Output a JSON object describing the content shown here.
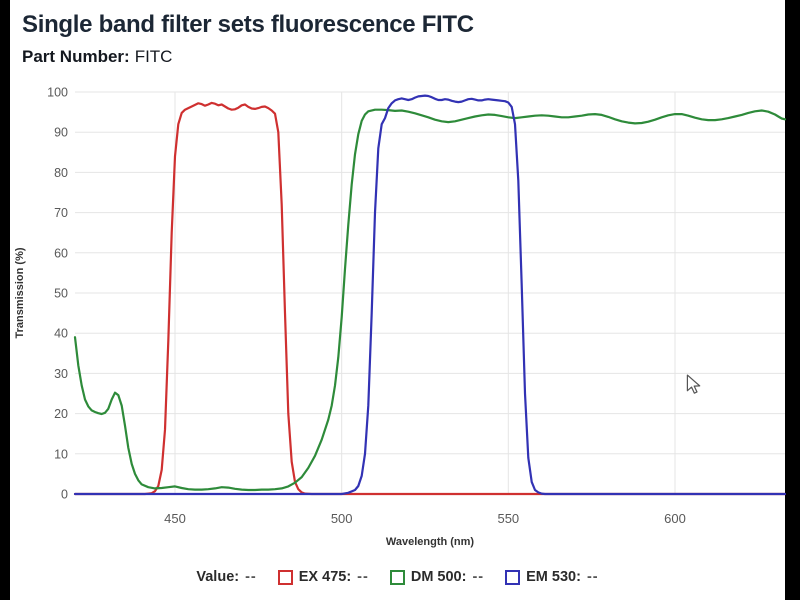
{
  "header": {
    "title": "Single band filter sets fluorescence FITC",
    "part_number_label": "Part Number:",
    "part_number_value": "FITC"
  },
  "chart_data": {
    "type": "line",
    "title": "",
    "xlabel": "Wavelength (nm)",
    "ylabel": "Transmission (%)",
    "xlim": [
      420,
      633
    ],
    "ylim": [
      0,
      100
    ],
    "x_ticks": [
      450,
      500,
      550,
      600
    ],
    "y_ticks": [
      0,
      10,
      20,
      30,
      40,
      50,
      60,
      70,
      80,
      90,
      100
    ],
    "grid": true,
    "grid_color": "#e5e5e5",
    "tick_label_color": "#595959",
    "legend_position": "bottom",
    "series": [
      {
        "name": "EX 475",
        "color": "#cf3030",
        "points": [
          [
            420,
            0
          ],
          [
            441,
            0
          ],
          [
            443,
            0.2
          ],
          [
            444,
            0.7
          ],
          [
            445,
            2
          ],
          [
            446,
            6
          ],
          [
            447,
            16
          ],
          [
            448,
            38
          ],
          [
            449,
            65
          ],
          [
            450,
            84
          ],
          [
            451,
            92
          ],
          [
            452,
            94.8
          ],
          [
            453,
            95.6
          ],
          [
            454,
            96
          ],
          [
            455,
            96.4
          ],
          [
            456,
            96.8
          ],
          [
            457,
            97.2
          ],
          [
            458,
            97
          ],
          [
            459,
            96.6
          ],
          [
            460,
            96.9
          ],
          [
            461,
            97.3
          ],
          [
            462,
            97.1
          ],
          [
            463,
            96.7
          ],
          [
            464,
            96.9
          ],
          [
            465,
            96.4
          ],
          [
            466,
            95.9
          ],
          [
            467,
            95.6
          ],
          [
            468,
            95.7
          ],
          [
            469,
            96.1
          ],
          [
            470,
            96.7
          ],
          [
            471,
            96.9
          ],
          [
            472,
            96.3
          ],
          [
            473,
            95.9
          ],
          [
            474,
            95.8
          ],
          [
            475,
            96
          ],
          [
            476,
            96.3
          ],
          [
            477,
            96.4
          ],
          [
            478,
            96
          ],
          [
            479,
            95.4
          ],
          [
            480,
            94.6
          ],
          [
            481,
            90
          ],
          [
            482,
            72
          ],
          [
            483,
            45
          ],
          [
            484,
            20
          ],
          [
            485,
            8
          ],
          [
            486,
            3
          ],
          [
            487,
            1.2
          ],
          [
            488,
            0.4
          ],
          [
            489,
            0.1
          ],
          [
            491,
            0
          ],
          [
            633,
            0
          ]
        ]
      },
      {
        "name": "DM 500",
        "color": "#2e8b3a",
        "points": [
          [
            420,
            39
          ],
          [
            421,
            32
          ],
          [
            422,
            27
          ],
          [
            423,
            23.5
          ],
          [
            424,
            21.8
          ],
          [
            425,
            20.8
          ],
          [
            426,
            20.4
          ],
          [
            427,
            20.1
          ],
          [
            428,
            19.9
          ],
          [
            429,
            20.2
          ],
          [
            430,
            21.2
          ],
          [
            431,
            23.5
          ],
          [
            432,
            25.2
          ],
          [
            433,
            24.6
          ],
          [
            434,
            22
          ],
          [
            435,
            17
          ],
          [
            436,
            11.5
          ],
          [
            437,
            7.5
          ],
          [
            438,
            5
          ],
          [
            439,
            3.4
          ],
          [
            440,
            2.4
          ],
          [
            442,
            1.7
          ],
          [
            444,
            1.4
          ],
          [
            446,
            1.5
          ],
          [
            448,
            1.7
          ],
          [
            450,
            1.9
          ],
          [
            452,
            1.5
          ],
          [
            454,
            1.2
          ],
          [
            456,
            1.1
          ],
          [
            458,
            1.1
          ],
          [
            460,
            1.2
          ],
          [
            462,
            1.4
          ],
          [
            464,
            1.7
          ],
          [
            466,
            1.6
          ],
          [
            468,
            1.3
          ],
          [
            470,
            1.1
          ],
          [
            472,
            1
          ],
          [
            474,
            1
          ],
          [
            476,
            1.1
          ],
          [
            478,
            1.1
          ],
          [
            480,
            1.2
          ],
          [
            482,
            1.4
          ],
          [
            484,
            1.9
          ],
          [
            486,
            2.8
          ],
          [
            488,
            4.2
          ],
          [
            490,
            6.5
          ],
          [
            492,
            9.5
          ],
          [
            494,
            13.5
          ],
          [
            496,
            18.5
          ],
          [
            497,
            22
          ],
          [
            498,
            27
          ],
          [
            499,
            34
          ],
          [
            500,
            44
          ],
          [
            501,
            56
          ],
          [
            502,
            67
          ],
          [
            503,
            77
          ],
          [
            504,
            84.5
          ],
          [
            505,
            89.5
          ],
          [
            506,
            92.8
          ],
          [
            507,
            94.4
          ],
          [
            508,
            95.2
          ],
          [
            510,
            95.6
          ],
          [
            512,
            95.6
          ],
          [
            514,
            95.5
          ],
          [
            516,
            95.3
          ],
          [
            518,
            95.4
          ],
          [
            520,
            95.1
          ],
          [
            522,
            94.7
          ],
          [
            524,
            94.2
          ],
          [
            526,
            93.7
          ],
          [
            528,
            93.1
          ],
          [
            530,
            92.7
          ],
          [
            532,
            92.5
          ],
          [
            534,
            92.7
          ],
          [
            536,
            93.1
          ],
          [
            538,
            93.5
          ],
          [
            540,
            93.9
          ],
          [
            542,
            94.2
          ],
          [
            544,
            94.4
          ],
          [
            546,
            94.3
          ],
          [
            548,
            94
          ],
          [
            550,
            93.7
          ],
          [
            552,
            93.5
          ],
          [
            554,
            93.7
          ],
          [
            556,
            93.9
          ],
          [
            558,
            94.1
          ],
          [
            560,
            94.2
          ],
          [
            562,
            94.1
          ],
          [
            564,
            93.9
          ],
          [
            566,
            93.7
          ],
          [
            568,
            93.7
          ],
          [
            570,
            93.9
          ],
          [
            572,
            94.1
          ],
          [
            574,
            94.4
          ],
          [
            576,
            94.5
          ],
          [
            578,
            94.3
          ],
          [
            580,
            93.8
          ],
          [
            582,
            93.2
          ],
          [
            584,
            92.7
          ],
          [
            586,
            92.4
          ],
          [
            588,
            92.2
          ],
          [
            590,
            92.3
          ],
          [
            592,
            92.6
          ],
          [
            594,
            93.1
          ],
          [
            596,
            93.7
          ],
          [
            598,
            94.2
          ],
          [
            600,
            94.5
          ],
          [
            602,
            94.5
          ],
          [
            604,
            94.1
          ],
          [
            606,
            93.6
          ],
          [
            608,
            93.2
          ],
          [
            610,
            93
          ],
          [
            612,
            93
          ],
          [
            614,
            93.2
          ],
          [
            616,
            93.5
          ],
          [
            618,
            93.9
          ],
          [
            620,
            94.3
          ],
          [
            622,
            94.8
          ],
          [
            624,
            95.2
          ],
          [
            626,
            95.4
          ],
          [
            628,
            95.1
          ],
          [
            630,
            94.4
          ],
          [
            631,
            93.9
          ],
          [
            632,
            93.4
          ],
          [
            633,
            93.2
          ]
        ]
      },
      {
        "name": "EM 530",
        "color": "#3232b4",
        "points": [
          [
            420,
            0
          ],
          [
            500,
            0
          ],
          [
            502,
            0.3
          ],
          [
            504,
            1
          ],
          [
            505,
            2
          ],
          [
            506,
            4.5
          ],
          [
            507,
            10
          ],
          [
            508,
            22
          ],
          [
            509,
            45
          ],
          [
            510,
            70
          ],
          [
            511,
            86
          ],
          [
            512,
            92
          ],
          [
            513,
            93.5
          ],
          [
            514,
            96
          ],
          [
            515,
            97.2
          ],
          [
            516,
            97.9
          ],
          [
            517,
            98.2
          ],
          [
            518,
            98.4
          ],
          [
            519,
            98.2
          ],
          [
            520,
            98
          ],
          [
            521,
            98.2
          ],
          [
            522,
            98.6
          ],
          [
            523,
            98.9
          ],
          [
            524,
            99
          ],
          [
            525,
            99.1
          ],
          [
            526,
            99
          ],
          [
            527,
            98.7
          ],
          [
            528,
            98.3
          ],
          [
            529,
            98
          ],
          [
            530,
            98
          ],
          [
            531,
            98.2
          ],
          [
            532,
            98.1
          ],
          [
            533,
            97.8
          ],
          [
            534,
            97.6
          ],
          [
            535,
            97.5
          ],
          [
            536,
            97.6
          ],
          [
            537,
            97.9
          ],
          [
            538,
            98.2
          ],
          [
            539,
            98.3
          ],
          [
            540,
            98.1
          ],
          [
            541,
            97.9
          ],
          [
            542,
            97.9
          ],
          [
            543,
            98.1
          ],
          [
            544,
            98.2
          ],
          [
            545,
            98.1
          ],
          [
            546,
            98
          ],
          [
            547,
            97.9
          ],
          [
            548,
            97.8
          ],
          [
            549,
            97.7
          ],
          [
            550,
            97.4
          ],
          [
            551,
            96.3
          ],
          [
            552,
            92
          ],
          [
            553,
            78
          ],
          [
            554,
            52
          ],
          [
            555,
            25
          ],
          [
            556,
            9
          ],
          [
            557,
            3
          ],
          [
            558,
            1
          ],
          [
            559,
            0.4
          ],
          [
            560,
            0.1
          ],
          [
            561,
            0
          ],
          [
            633,
            0
          ]
        ]
      }
    ]
  },
  "legend": {
    "value_label": "Value:",
    "value_text": "--",
    "items": [
      {
        "label": "EX 475:",
        "value": "--",
        "color": "#cf3030"
      },
      {
        "label": "DM 500:",
        "value": "--",
        "color": "#2e8b3a"
      },
      {
        "label": "EM 530:",
        "value": "--",
        "color": "#3232b4"
      }
    ]
  }
}
